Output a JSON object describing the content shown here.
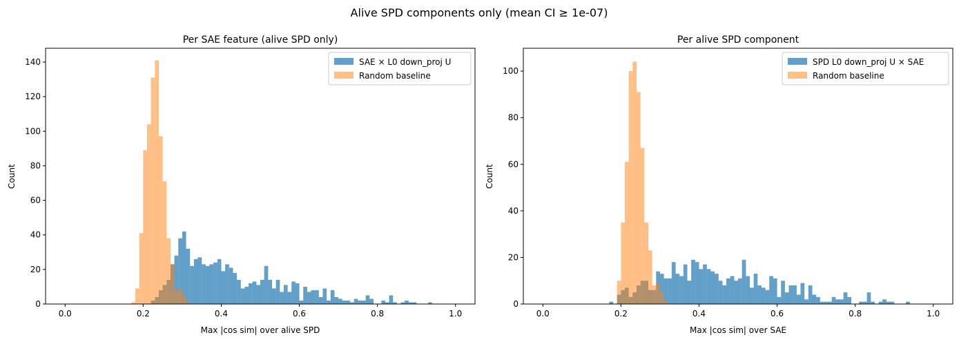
{
  "suptitle": "Alive SPD components only (mean CI ≥ 1e-07)",
  "chart_data": [
    {
      "type": "histogram",
      "title": "Per SAE feature (alive SPD only)",
      "xlabel": "Max |cos sim| over alive SPD",
      "ylabel": "Count",
      "xlim": [
        -0.05,
        1.05
      ],
      "ylim": [
        0,
        148
      ],
      "xticks": [
        0.0,
        0.2,
        0.4,
        0.6,
        0.8,
        1.0
      ],
      "yticks": [
        0,
        20,
        40,
        60,
        80,
        100,
        120,
        140
      ],
      "bin_width": 0.01,
      "legend_position": "upper-right",
      "series": [
        {
          "name": "SAE × L0 down_proj U",
          "color": "#1f77b4",
          "alpha": 0.7,
          "bin_start": 0.22,
          "counts": [
            2,
            4,
            8,
            11,
            14,
            23,
            28,
            38,
            42,
            32,
            22,
            26,
            27,
            23,
            22,
            23,
            24,
            26,
            19,
            23,
            21,
            18,
            14,
            9,
            10,
            12,
            13,
            11,
            14,
            22,
            14,
            9,
            14,
            7,
            11,
            7,
            13,
            12,
            2,
            10,
            7,
            8,
            8,
            4,
            9,
            2,
            8,
            4,
            3,
            2,
            2,
            1,
            3,
            2,
            2,
            5,
            3,
            0,
            0,
            2,
            1,
            5,
            1,
            0,
            1,
            2,
            1,
            1,
            0,
            0,
            0,
            1
          ]
        },
        {
          "name": "Random baseline",
          "color": "#ff7f0e",
          "alpha": 0.5,
          "bin_start": 0.17,
          "counts": [
            1,
            9,
            41,
            89,
            104,
            131,
            141,
            97,
            71,
            38,
            23,
            8,
            9,
            5,
            1
          ]
        }
      ]
    },
    {
      "type": "histogram",
      "title": "Per alive SPD component",
      "xlabel": "Max |cos sim| over SAE",
      "ylabel": "Count",
      "xlim": [
        -0.05,
        1.05
      ],
      "ylim": [
        0,
        109.8
      ],
      "xticks": [
        0.0,
        0.2,
        0.4,
        0.6,
        0.8,
        1.0
      ],
      "yticks": [
        0,
        20,
        40,
        60,
        80,
        100
      ],
      "bin_width": 0.01,
      "legend_position": "upper-right",
      "series": [
        {
          "name": "SPD L0 down_proj U × SAE",
          "color": "#1f77b4",
          "alpha": 0.7,
          "bin_start": 0.17,
          "counts": [
            1,
            0,
            4,
            6,
            7,
            3,
            5,
            8,
            10,
            10,
            6,
            6,
            14,
            13,
            11,
            11,
            18,
            13,
            12,
            17,
            10,
            19,
            18,
            15,
            17,
            15,
            14,
            13,
            10,
            8,
            11,
            12,
            10,
            11,
            19,
            12,
            7,
            13,
            8,
            7,
            6,
            12,
            11,
            3,
            10,
            5,
            8,
            8,
            4,
            9,
            2,
            8,
            4,
            3,
            1,
            1,
            1,
            3,
            2,
            2,
            5,
            3,
            0,
            0,
            1,
            1,
            5,
            1,
            0,
            1,
            2,
            1,
            1,
            0,
            0,
            0,
            1
          ]
        },
        {
          "name": "Random baseline",
          "color": "#ff7f0e",
          "alpha": 0.5,
          "bin_start": 0.19,
          "counts": [
            10,
            35,
            61,
            100,
            104,
            91,
            67,
            35,
            23,
            8,
            9,
            5,
            1
          ]
        }
      ]
    }
  ]
}
